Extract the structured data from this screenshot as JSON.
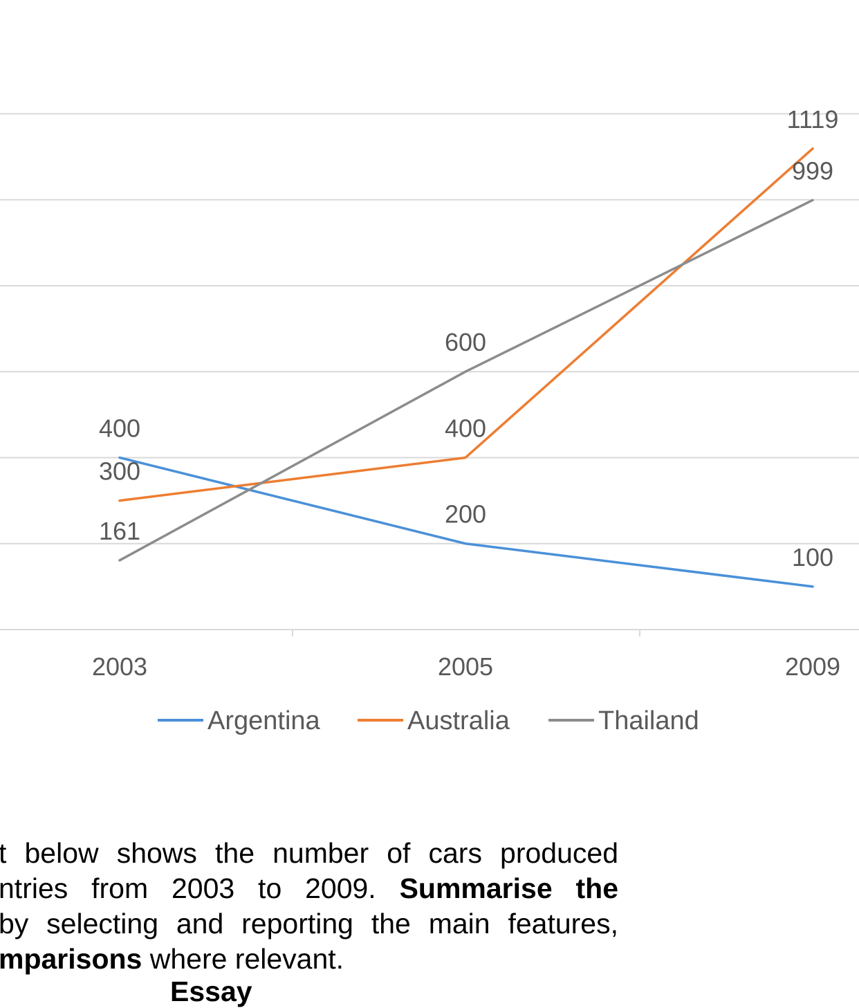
{
  "chart_data": {
    "type": "line",
    "categories": [
      "2003",
      "2005",
      "2009"
    ],
    "series": [
      {
        "name": "Argentina",
        "color": "#4a90d9",
        "values": [
          400,
          200,
          100
        ],
        "labels": [
          "400",
          "200",
          "100"
        ]
      },
      {
        "name": "Australia",
        "color": "#ed7d31",
        "values": [
          300,
          400,
          1119
        ],
        "labels": [
          "300",
          "400",
          "1119"
        ]
      },
      {
        "name": "Thailand",
        "color": "#8c8c8c",
        "values": [
          161,
          600,
          999
        ],
        "labels": [
          "161",
          "600",
          "999"
        ]
      }
    ],
    "legend_position": "bottom",
    "grid": true
  },
  "caption": {
    "line1": "t below shows the number of cars produced",
    "line2_regular": "ntries from 2003 to 2009.",
    "line2_bold": "Summarise the",
    "line3": "by selecting and reporting the main features,",
    "line4_bold": "mparisons",
    "line4_regular": "where relevant.",
    "essay": "Essay"
  }
}
